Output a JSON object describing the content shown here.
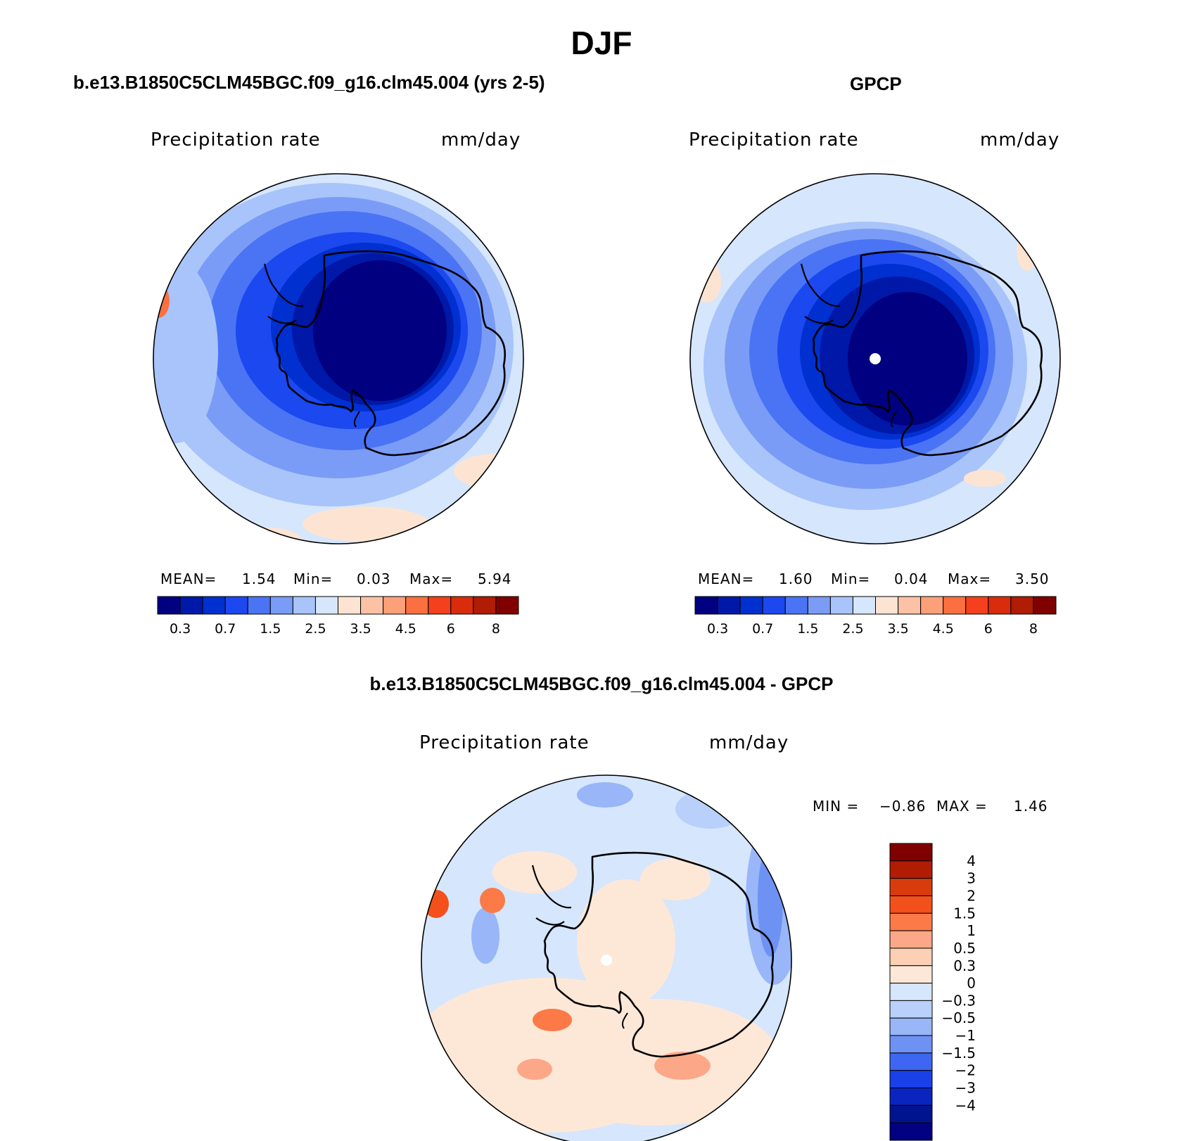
{
  "title": "DJF",
  "panels": {
    "model": {
      "title": "b.e13.B1850C5CLM45BGC.f09_g16.clm45.004 (yrs 2-5)",
      "variable": "Precipitation rate",
      "units": "mm/day",
      "stats": {
        "mean_label": "MEAN=",
        "mean": "1.54",
        "min_label": "Min=",
        "min": "0.03",
        "max_label": "Max=",
        "max": "5.94"
      }
    },
    "obs": {
      "title": "GPCP",
      "variable": "Precipitation rate",
      "units": "mm/day",
      "stats": {
        "mean_label": "MEAN=",
        "mean": "1.60",
        "min_label": "Min=",
        "min": "0.04",
        "max_label": "Max=",
        "max": "3.50"
      }
    },
    "diff": {
      "title": "b.e13.B1850C5CLM45BGC.f09_g16.clm45.004 - GPCP",
      "variable": "Precipitation rate",
      "units": "mm/day",
      "minmax": {
        "min_label": "MIN =",
        "min": "−0.86",
        "max_label": "MAX =",
        "max": "1.46"
      }
    }
  },
  "colorbar_abs": {
    "colors": [
      "#000080",
      "#0018a8",
      "#0030d0",
      "#1c48f0",
      "#4a74f4",
      "#7a9cf6",
      "#a8c4fa",
      "#d6e6fc",
      "#fde4d2",
      "#fcc2a6",
      "#fca07a",
      "#fb7040",
      "#f4401c",
      "#d82c0c",
      "#b01c04",
      "#800000"
    ],
    "ticks": [
      "0.3",
      "0.7",
      "1.5",
      "2.5",
      "3.5",
      "4.5",
      "6",
      "8"
    ]
  },
  "colorbar_diff": {
    "colors": [
      "#800000",
      "#b01c04",
      "#d83c0c",
      "#f4501c",
      "#fb7a48",
      "#fca888",
      "#fcd0b4",
      "#fde8d8",
      "#d6e6fc",
      "#b8d0fa",
      "#98b6f8",
      "#6e92f4",
      "#3e66f0",
      "#1a40e8",
      "#0a24c0",
      "#001490",
      "#000080"
    ],
    "labels": [
      "4",
      "3",
      "2",
      "1.5",
      "1",
      "0.5",
      "0.3",
      "0",
      "−0.3",
      "−0.5",
      "−1",
      "−1.5",
      "−2",
      "−3",
      "−4"
    ]
  },
  "chart_data": [
    {
      "type": "heatmap",
      "title": "b.e13.B1850C5CLM45BGC.f09_g16.clm45.004 (yrs 2-5)",
      "variable": "Precipitation rate",
      "units": "mm/day",
      "season": "DJF",
      "projection": "south-polar-stereographic",
      "mean": 1.54,
      "min": 0.03,
      "max": 5.94,
      "contour_levels": [
        0.2,
        0.3,
        0.5,
        0.7,
        1,
        1.5,
        2,
        2.5,
        3,
        3.5,
        4,
        4.5,
        5,
        6,
        7,
        8
      ]
    },
    {
      "type": "heatmap",
      "title": "GPCP",
      "variable": "Precipitation rate",
      "units": "mm/day",
      "season": "DJF",
      "projection": "south-polar-stereographic",
      "mean": 1.6,
      "min": 0.04,
      "max": 3.5,
      "contour_levels": [
        0.2,
        0.3,
        0.5,
        0.7,
        1,
        1.5,
        2,
        2.5,
        3,
        3.5,
        4,
        4.5,
        5,
        6,
        7,
        8
      ]
    },
    {
      "type": "heatmap",
      "title": "b.e13.B1850C5CLM45BGC.f09_g16.clm45.004 - GPCP",
      "variable": "Precipitation rate",
      "units": "mm/day",
      "season": "DJF",
      "projection": "south-polar-stereographic",
      "min": -0.86,
      "max": 1.46,
      "contour_levels": [
        -4,
        -3,
        -2,
        -1.5,
        -1,
        -0.5,
        -0.3,
        0,
        0.3,
        0.5,
        1,
        1.5,
        2,
        3,
        4
      ]
    }
  ]
}
